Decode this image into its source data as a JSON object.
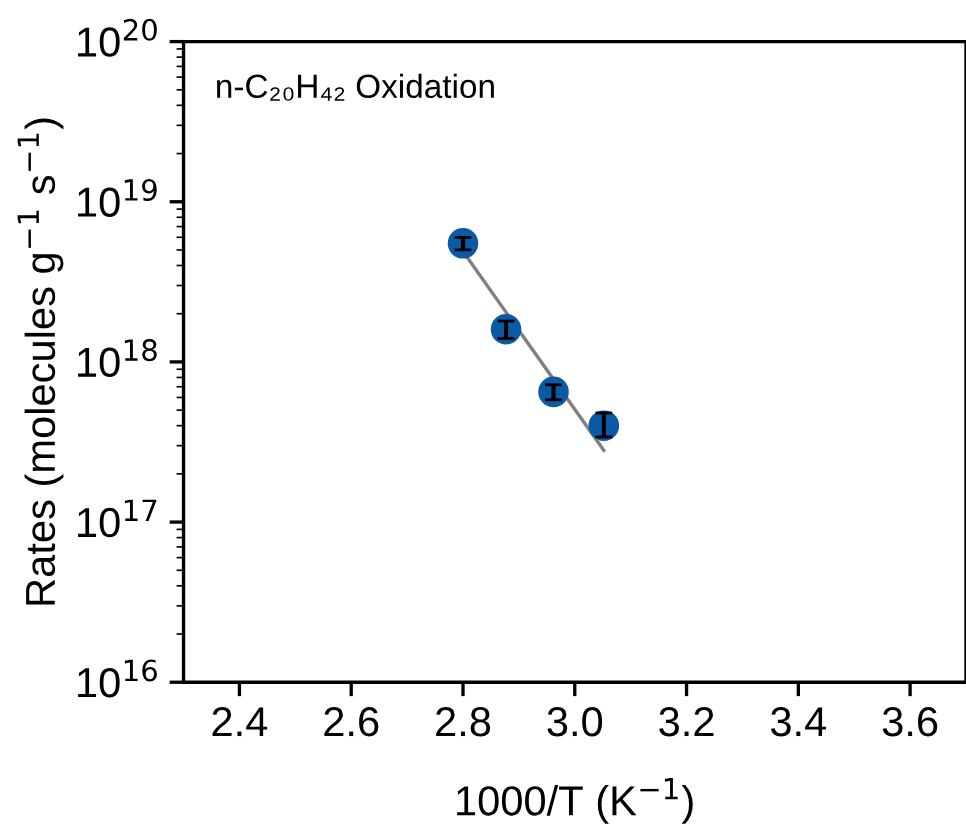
{
  "chart_data": {
    "type": "scatter",
    "xlabel": "1000/T (K$^{−1}$)",
    "ylabel": "Rates (molecules g$^{−1}$ s$^{−1}$)",
    "annotations": [
      "n-C₂₀H₄₂ Oxidation"
    ],
    "log": "y",
    "xlim": [
      2.3,
      3.7
    ],
    "xticks": [
      2.4,
      2.6,
      2.8,
      {
        "value": 3,
        "label": "3.0"
      },
      3.2,
      3.4,
      3.6
    ],
    "ylim": [
      1e+16,
      1e+20
    ],
    "yticks": [
      {
        "value": 1e+16,
        "label": "10$^{16}$"
      },
      {
        "value": 1e+17,
        "label": "10$^{17}$"
      },
      {
        "value": 1e+18,
        "label": "10$^{18}$"
      },
      {
        "value": 1e+19,
        "label": "10$^{19}$"
      },
      {
        "value": 1e+20,
        "label": "10$^{20}$"
      }
    ],
    "grid": false,
    "legend": false,
    "series": [
      {
        "color": "#0b5aa6",
        "marker": "circle",
        "x": [
          2.8,
          2.877,
          2.962,
          3.052
        ],
        "values": [
          5.5e+18,
          1.6e+18,
          6.5e+17,
          4e+17
        ],
        "errors": [
          [
            5e+18,
            6e+18
          ],
          [
            1.4e+18,
            1.8e+18
          ],
          [
            5.8e+17,
            7.2e+17
          ],
          [
            3.4e+17,
            4.8e+17
          ]
        ]
      },
      {
        "type": "line",
        "color": "#808080",
        "marker": "none",
        "line_style": "solid",
        "x": [
          2.8,
          3.052
        ],
        "values": [
          4.9e+18,
          2.8e+17
        ]
      }
    ]
  }
}
